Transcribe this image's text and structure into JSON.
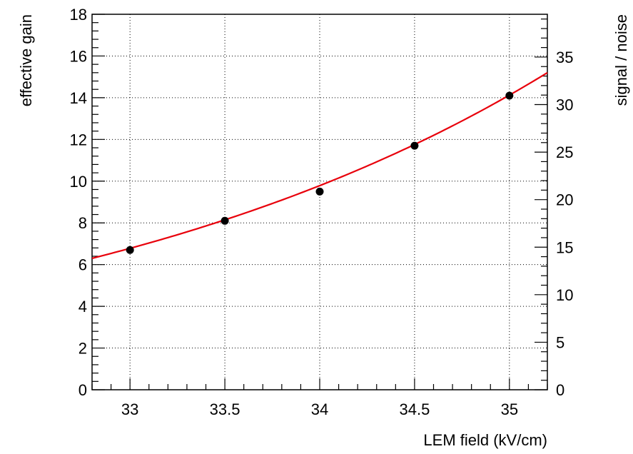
{
  "chart_data": {
    "type": "scatter",
    "xlabel": "LEM field (kV/cm)",
    "ylabel": "effective gain",
    "y2label": "signal / noise",
    "xlim": [
      32.8,
      35.2
    ],
    "ylim": [
      0,
      18
    ],
    "y2lim": [
      0,
      39.5
    ],
    "xticks": [
      33,
      33.5,
      34,
      34.5,
      35
    ],
    "xtick_labels": [
      "33",
      "33.5",
      "34",
      "34.5",
      "35"
    ],
    "yticks": [
      0,
      2,
      4,
      6,
      8,
      10,
      12,
      14,
      16,
      18
    ],
    "ytick_labels": [
      "0",
      "2",
      "4",
      "6",
      "8",
      "10",
      "12",
      "14",
      "16",
      "18"
    ],
    "y2ticks": [
      0,
      5,
      10,
      15,
      20,
      25,
      30,
      35
    ],
    "y2tick_labels": [
      "0",
      "5",
      "10",
      "15",
      "20",
      "25",
      "30",
      "35"
    ],
    "grid": true,
    "series": [
      {
        "kind": "points",
        "color": "#000000",
        "x": [
          33,
          33.5,
          34,
          34.5,
          35
        ],
        "y": [
          6.7,
          8.1,
          9.5,
          11.7,
          14.1
        ]
      },
      {
        "kind": "fit-line",
        "color": "#e8000b",
        "function": "exponential",
        "x": [
          32.8,
          33.0,
          33.5,
          34.0,
          34.5,
          35.0,
          35.2
        ],
        "y": [
          6.3,
          6.7,
          8.0,
          9.6,
          11.6,
          14.0,
          15.2
        ]
      }
    ]
  }
}
